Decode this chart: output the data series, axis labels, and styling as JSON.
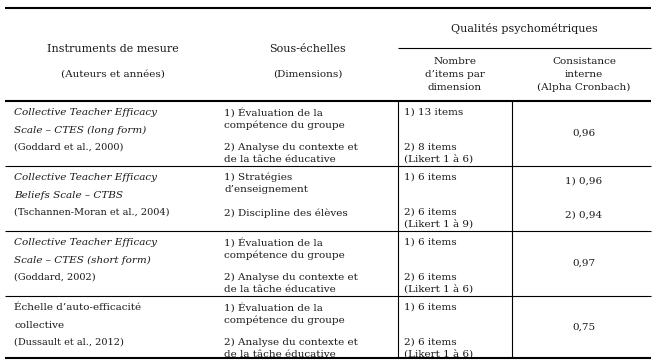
{
  "title": "Qualités psychométriques",
  "header_col0": "Instruments de mesure",
  "header_col0b": "(Auteurs et années)",
  "header_col1": "Sous-échelles",
  "header_col1b": "(Dimensions)",
  "header_col2": "Nombre\nd’items par\ndimension",
  "header_col3": "Consistance\ninterne\n(Alpha Cronbach)",
  "rows": [
    {
      "inst1": "Collective Teacher Efficacy",
      "inst2": "Scale – CTES (long form)",
      "inst3": "(Goddard et al., 2000)",
      "inst1_italic": true,
      "inst2_italic": true,
      "inst3_italic": false,
      "sous1": "1) Évaluation de la\ncompétence du groupe",
      "sous2": "2) Analyse du contexte et\nde la tâche éducative",
      "nombre1": "1) 13 items",
      "nombre2": "2) 8 items\n(Likert 1 à 6)",
      "cons1": "",
      "cons2": "0,96"
    },
    {
      "inst1": "Collective Teacher Efficacy",
      "inst2": "Beliefs Scale – CTBS",
      "inst3": "(Tschannen-Moran et al., 2004)",
      "inst1_italic": true,
      "inst2_italic": true,
      "inst3_italic": false,
      "sous1": "1) Stratégies\nd’enseignement",
      "sous2": "2) Discipline des élèves",
      "nombre1": "1) 6 items",
      "nombre2": "2) 6 items\n(Likert 1 à 9)",
      "cons1": "1) 0,96",
      "cons2": "2) 0,94"
    },
    {
      "inst1": "Collective Teacher Efficacy",
      "inst2": "Scale – CTES (short form)",
      "inst3": "(Goddard, 2002)",
      "inst1_italic": true,
      "inst2_italic": true,
      "inst3_italic": false,
      "sous1": "1) Évaluation de la\ncompétence du groupe",
      "sous2": "2) Analyse du contexte et\nde la tâche éducative",
      "nombre1": "1) 6 items",
      "nombre2": "2) 6 items\n(Likert 1 à 6)",
      "cons1": "",
      "cons2": "0,97"
    },
    {
      "inst1": "Échelle d’auto-efficacité",
      "inst2": "collective",
      "inst3": "(Dussault et al., 2012)",
      "inst1_italic": false,
      "inst2_italic": false,
      "inst3_italic": false,
      "sous1": "1) Évaluation de la\ncompétence du groupe",
      "sous2": "2) Analyse du contexte et\nde la tâche éducative",
      "nombre1": "1) 6 items",
      "nombre2": "2) 6 items\n(Likert 1 à 6)",
      "cons1": "",
      "cons2": "0,75"
    }
  ],
  "bg_color": "#ffffff",
  "text_color": "#1a1a1a",
  "line_color": "#000000",
  "fs": 7.5,
  "hfs": 8.0
}
